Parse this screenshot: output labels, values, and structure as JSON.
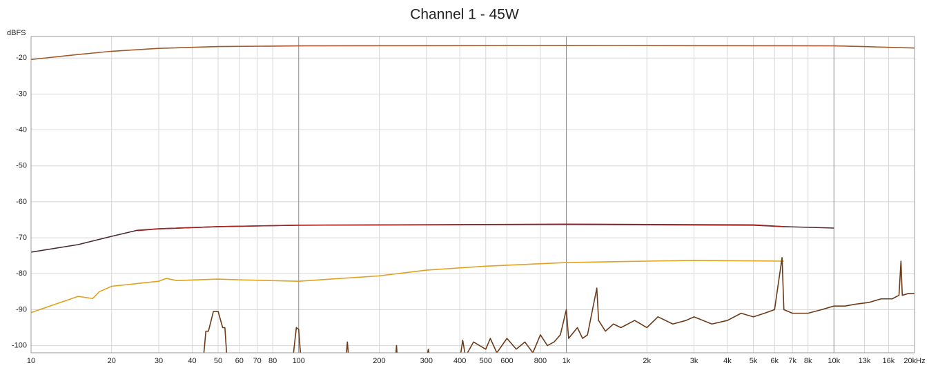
{
  "chart_data": {
    "type": "line",
    "title": "Channel 1 - 45W",
    "y_label": "dBFS",
    "x_scale": "log",
    "xlim": [
      10,
      20000
    ],
    "ylim": [
      -102,
      -14
    ],
    "grid": true,
    "xticks": [
      10,
      20,
      30,
      40,
      50,
      60,
      70,
      80,
      100,
      200,
      300,
      400,
      500,
      600,
      800,
      {
        "value": 1000,
        "label": "1k"
      },
      {
        "value": 2000,
        "label": "2k"
      },
      {
        "value": 3000,
        "label": "3k"
      },
      {
        "value": 4000,
        "label": "4k"
      },
      {
        "value": 5000,
        "label": "5k"
      },
      {
        "value": 6000,
        "label": "6k"
      },
      {
        "value": 7000,
        "label": "7k"
      },
      {
        "value": 8000,
        "label": "8k"
      },
      {
        "value": 10000,
        "label": "10k"
      },
      {
        "value": 13000,
        "label": "13k"
      },
      {
        "value": 16000,
        "label": "16k"
      },
      {
        "value": 20000,
        "label": "20kHz"
      }
    ],
    "yticks": [
      -20,
      -30,
      -40,
      -50,
      -60,
      -70,
      -80,
      -90,
      -100
    ],
    "series": [
      {
        "color": "#a0582a",
        "x": [
          10,
          15,
          20,
          30,
          50,
          100,
          1000,
          10000,
          13000,
          16000,
          20000
        ],
        "values": [
          -20.4,
          -19,
          -18.1,
          -17.3,
          -16.8,
          -16.6,
          -16.5,
          -16.6,
          -16.8,
          -17.0,
          -17.2
        ]
      },
      {
        "color": "#4a2838",
        "x": [
          10,
          15,
          20,
          25,
          30,
          50,
          100,
          1000,
          5000,
          6500,
          10000
        ],
        "values": [
          -74.0,
          -71.9,
          -69.6,
          -67.9,
          -67.5,
          -66.9,
          -66.5,
          -66.3,
          -66.5,
          -66.9,
          -67.3
        ]
      },
      {
        "color": "#a82020",
        "x": [
          25,
          30,
          50,
          100,
          1000,
          5000,
          6500
        ],
        "values": [
          -68.0,
          -67.5,
          -66.9,
          -66.5,
          -66.2,
          -66.4,
          -66.9
        ]
      },
      {
        "color": "#e0a020",
        "x": [
          10,
          15,
          17,
          18,
          20,
          30,
          32,
          35,
          50,
          60,
          100,
          200,
          300,
          500,
          1000,
          2000,
          3000,
          6500
        ],
        "values": [
          -90.8,
          -86.3,
          -86.9,
          -85,
          -83.5,
          -82.1,
          -81.3,
          -81.9,
          -81.5,
          -81.7,
          -82.1,
          -80.6,
          -79.0,
          -77.9,
          -76.9,
          -76.5,
          -76.3,
          -76.5
        ]
      },
      {
        "color": "#6b3a18",
        "x": [
          44,
          45,
          46,
          48,
          50,
          52,
          53,
          54,
          95,
          98,
          100,
          102,
          150,
          152,
          154,
          230,
          232,
          234,
          300,
          305,
          310,
          400,
          410,
          420,
          450,
          500,
          520,
          550,
          600,
          650,
          700,
          750,
          800,
          850,
          900,
          950,
          1000,
          1020,
          1100,
          1150,
          1200,
          1300,
          1320,
          1400,
          1500,
          1600,
          1800,
          2000,
          2200,
          2500,
          2800,
          3000,
          3500,
          4000,
          4500,
          5000,
          5500,
          6000,
          6400,
          6500,
          7000,
          8000,
          9000,
          10000,
          11000,
          12000,
          13500,
          15000,
          16500,
          17500,
          17800,
          18000,
          19000,
          20000
        ],
        "values": [
          -104,
          -96,
          -96,
          -90.5,
          -90.5,
          -95,
          -95,
          -104,
          -104,
          -95,
          -95.5,
          -104,
          -104,
          -99,
          -104,
          -104,
          -100,
          -104,
          -104,
          -101,
          -104,
          -104,
          -98.5,
          -103,
          -99,
          -101,
          -98,
          -102,
          -98,
          -101,
          -99,
          -102,
          -97,
          -100,
          -99,
          -97,
          -90,
          -98,
          -95,
          -98,
          -97,
          -84,
          -93,
          -96,
          -94,
          -95,
          -93,
          -95,
          -92,
          -94,
          -93,
          -92,
          -94,
          -93,
          -91,
          -92,
          -91,
          -90,
          -75.5,
          -90,
          -91,
          -91,
          -90,
          -89,
          -89,
          -88.5,
          -88,
          -87,
          -87,
          -86,
          -76.5,
          -86,
          -85.5,
          -85.5
        ]
      }
    ]
  }
}
